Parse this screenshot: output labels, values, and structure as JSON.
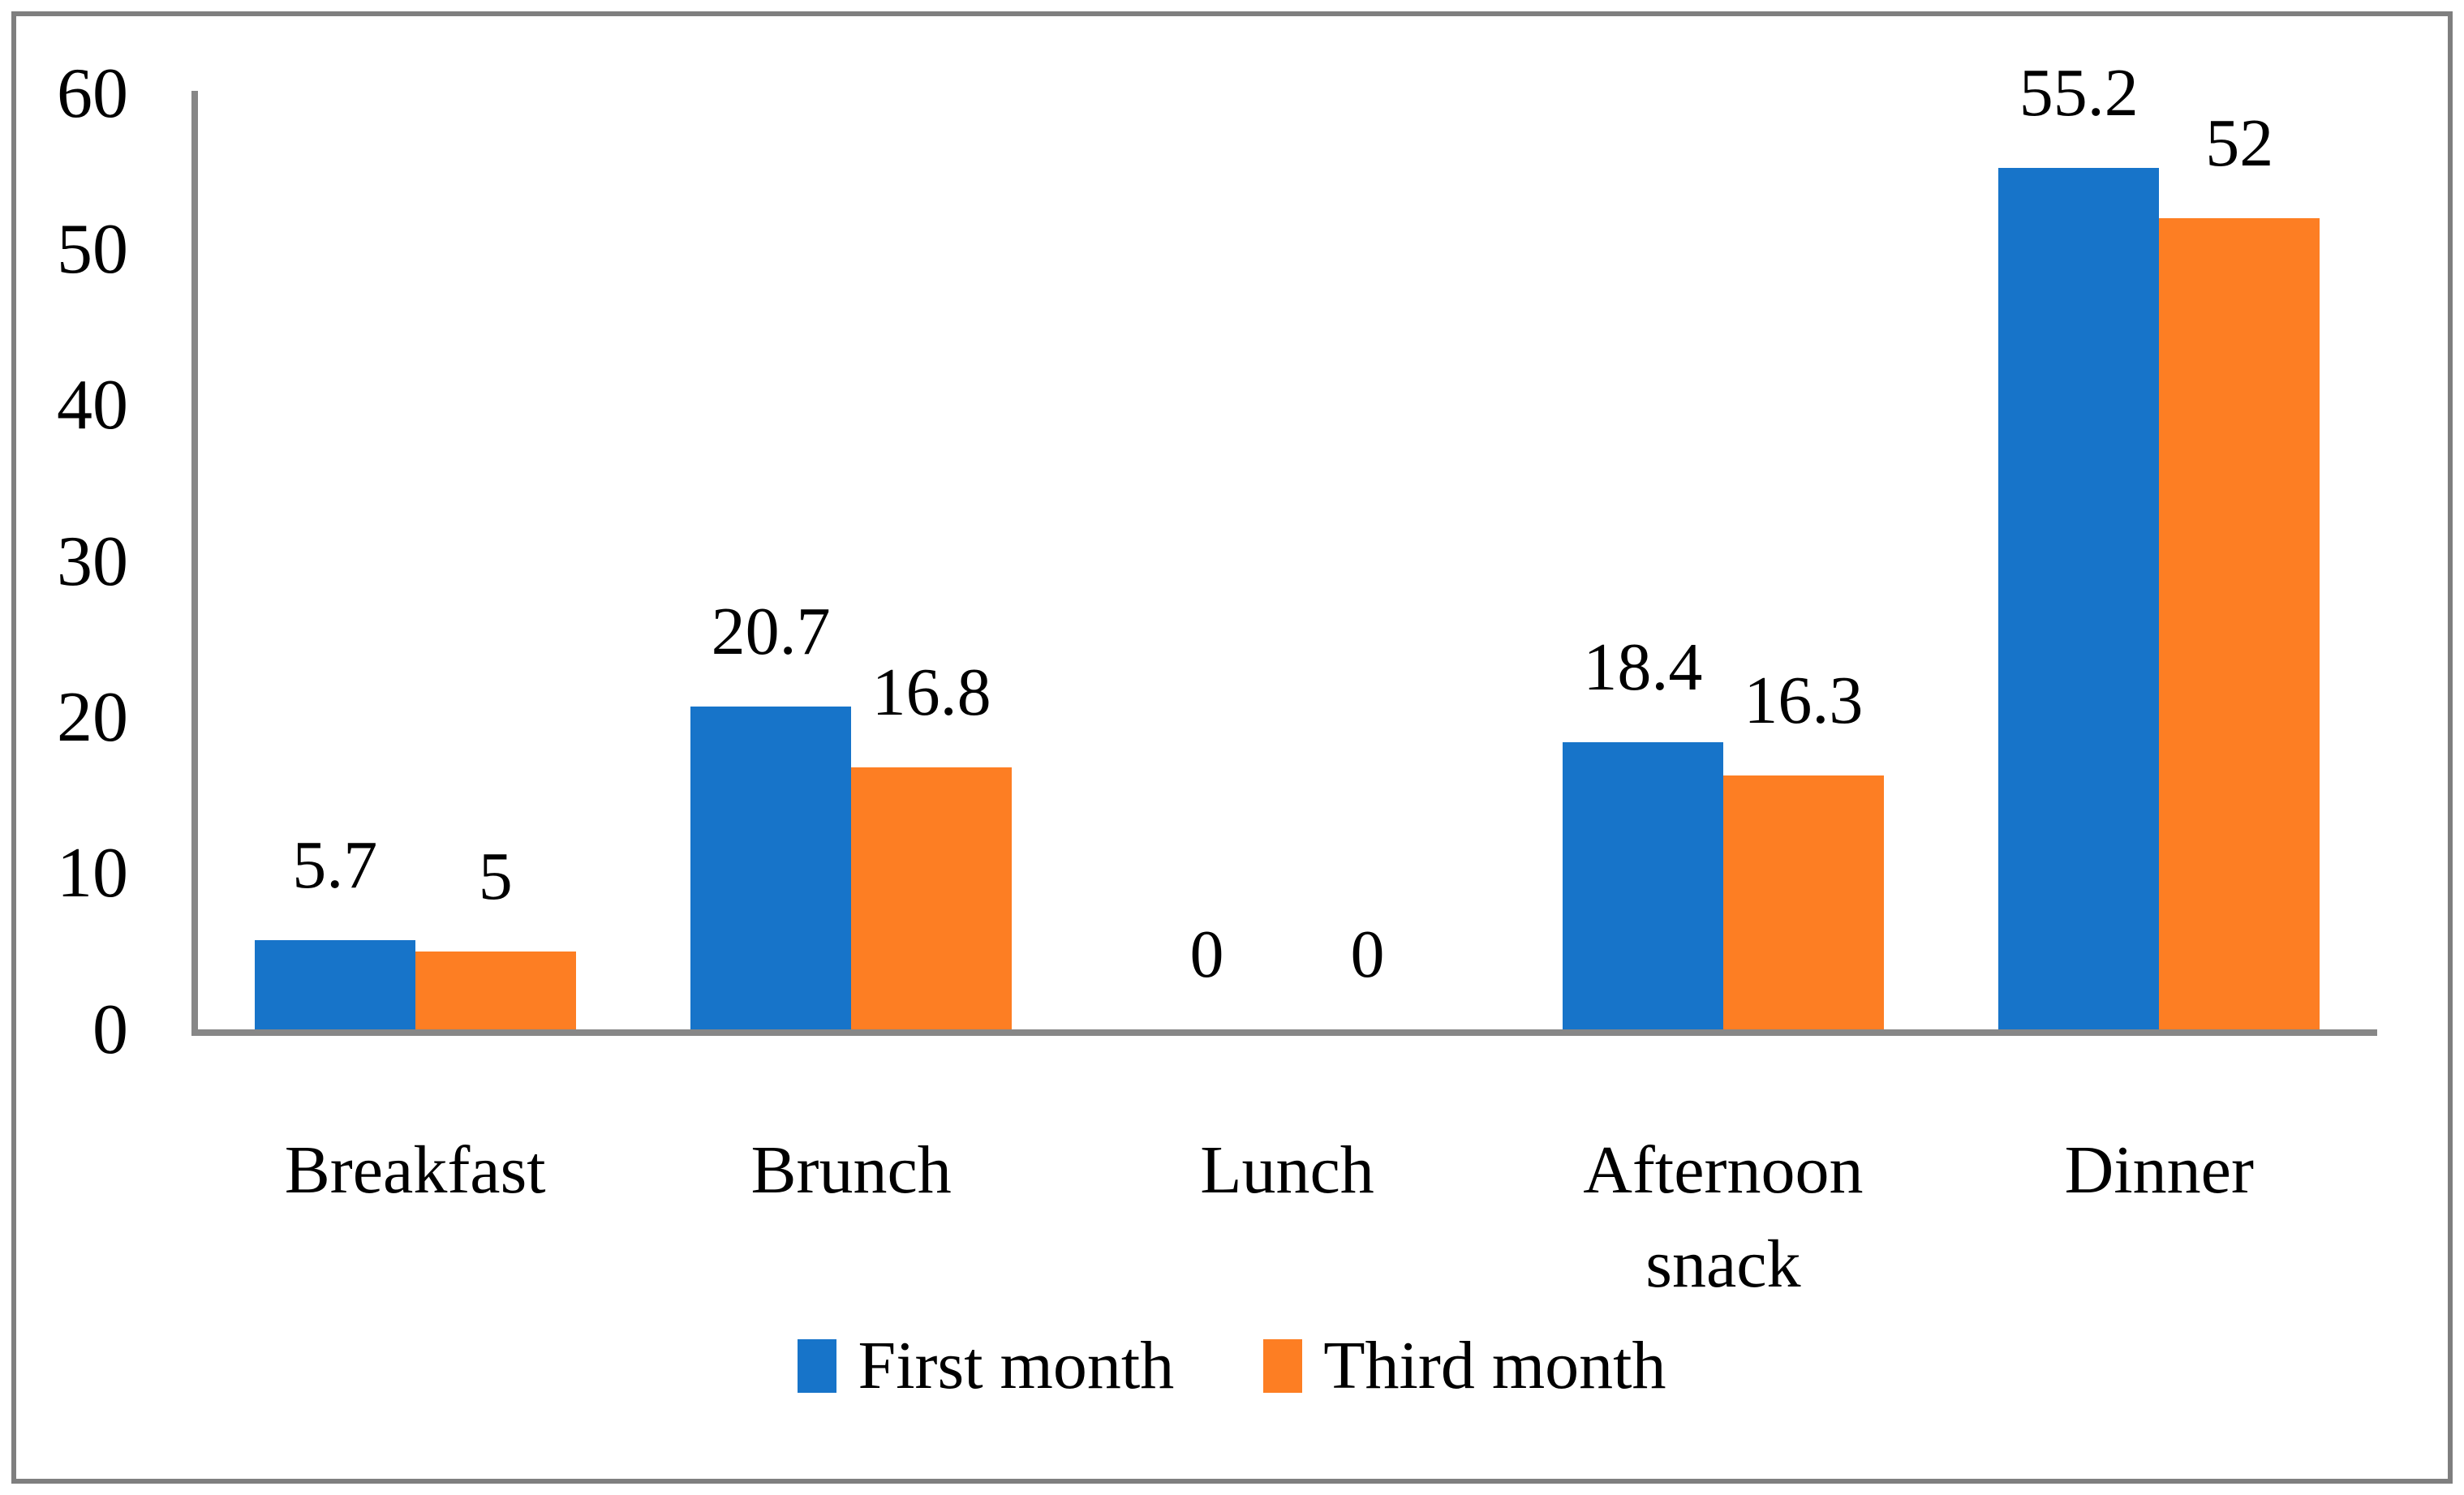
{
  "chart_data": {
    "type": "bar",
    "title": "",
    "xlabel": "",
    "ylabel": "",
    "categories": [
      "Breakfast",
      "Brunch",
      "Lunch",
      "Afternoon snack",
      "Dinner"
    ],
    "series": [
      {
        "name": "First month",
        "color": "#1774c9",
        "values": [
          5.7,
          20.7,
          0,
          18.4,
          55.2
        ],
        "labels": [
          "5.7",
          "20.7",
          "0",
          "18.4",
          "55.2"
        ]
      },
      {
        "name": "Third month",
        "color": "#fd7e23",
        "values": [
          5,
          16.8,
          0,
          16.3,
          52
        ],
        "labels": [
          "5",
          "16.8",
          "0",
          "16.3",
          "52"
        ]
      }
    ],
    "ylim": [
      0,
      60
    ],
    "yticks": [
      "0",
      "10",
      "20",
      "30",
      "40",
      "50",
      "60"
    ],
    "grid": false,
    "legend_position": "bottom",
    "data_labels": true,
    "axis_color": "#878787",
    "border_color": "#7f7f7f",
    "text_color": "#000000",
    "background_color": "#ffffff"
  }
}
